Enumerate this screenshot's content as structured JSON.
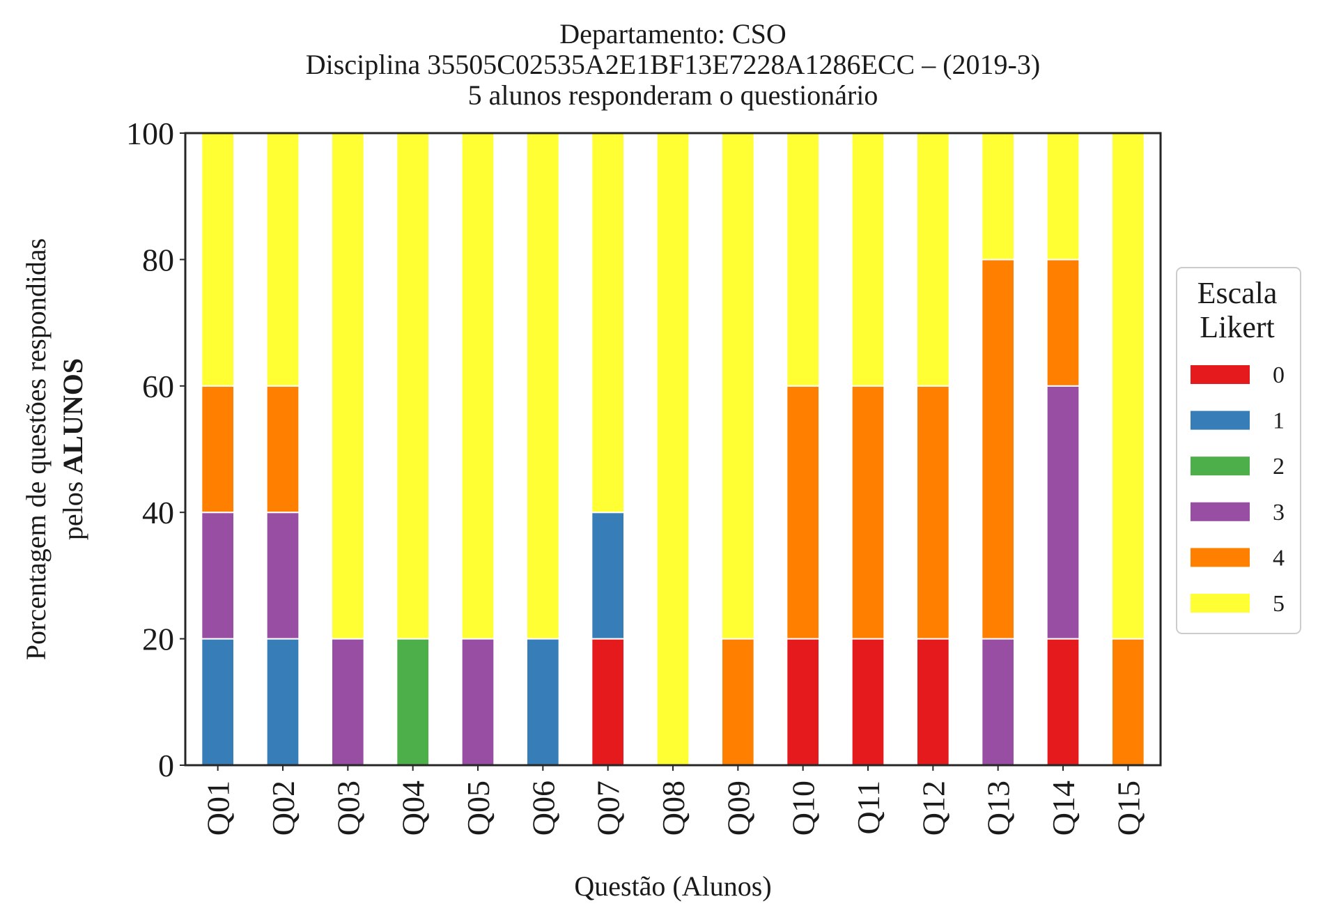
{
  "chart_data": {
    "type": "bar",
    "stacked": true,
    "title_lines": [
      "Departamento: CSO",
      "Disciplina 35505C02535A2E1BF13E7228A1286ECC – (2019-3)",
      "5 alunos responderam o questionário"
    ],
    "xlabel": "Questão (Alunos)",
    "ylabel_line1": "Porcentagem de questões respondidas",
    "ylabel_line2_prefix": "pelos ",
    "ylabel_line2_bold": "ALUNOS",
    "ylim": [
      0,
      100
    ],
    "yticks": [
      "0",
      "20",
      "40",
      "60",
      "80",
      "100"
    ],
    "grid": false,
    "legend_position": "right-center",
    "legend_title_lines": [
      "Escala",
      "Likert"
    ],
    "categories": [
      "Q01",
      "Q02",
      "Q03",
      "Q04",
      "Q05",
      "Q06",
      "Q07",
      "Q08",
      "Q09",
      "Q10",
      "Q11",
      "Q12",
      "Q13",
      "Q14",
      "Q15"
    ],
    "series": [
      {
        "name": "0",
        "color": "#e41a1c",
        "values": [
          0,
          0,
          0,
          0,
          0,
          0,
          20,
          0,
          0,
          20,
          20,
          20,
          0,
          20,
          0
        ]
      },
      {
        "name": "1",
        "color": "#377eb8",
        "values": [
          20,
          20,
          0,
          0,
          0,
          20,
          20,
          0,
          0,
          0,
          0,
          0,
          0,
          0,
          0
        ]
      },
      {
        "name": "2",
        "color": "#4daf4a",
        "values": [
          0,
          0,
          0,
          20,
          0,
          0,
          0,
          0,
          0,
          0,
          0,
          0,
          0,
          0,
          0
        ]
      },
      {
        "name": "3",
        "color": "#984ea3",
        "values": [
          20,
          20,
          20,
          0,
          20,
          0,
          0,
          0,
          0,
          0,
          0,
          0,
          20,
          40,
          0
        ]
      },
      {
        "name": "4",
        "color": "#ff7f00",
        "values": [
          20,
          20,
          0,
          0,
          0,
          0,
          0,
          0,
          20,
          40,
          40,
          40,
          60,
          20,
          20
        ]
      },
      {
        "name": "5",
        "color": "#ffff33",
        "values": [
          40,
          40,
          80,
          80,
          80,
          80,
          60,
          100,
          80,
          40,
          40,
          40,
          20,
          20,
          80
        ]
      }
    ]
  }
}
